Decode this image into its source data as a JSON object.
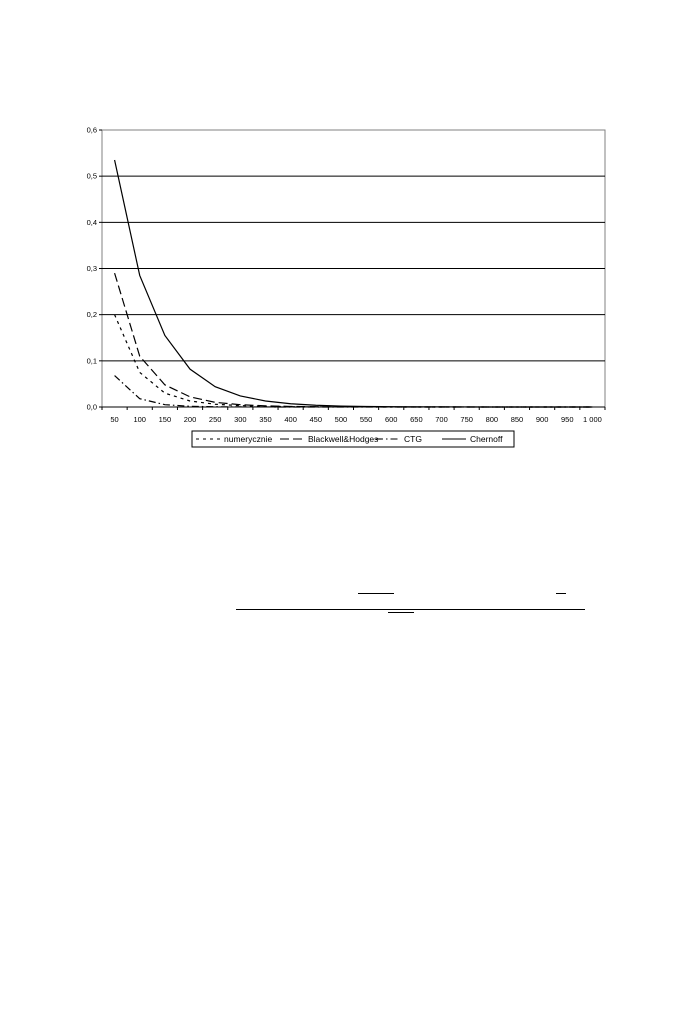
{
  "chart_data": {
    "type": "line",
    "x": [
      50,
      100,
      150,
      200,
      250,
      300,
      350,
      400,
      450,
      500,
      550,
      600,
      650,
      700,
      750,
      800,
      850,
      900,
      950,
      1000
    ],
    "x_tick_labels": [
      "50",
      "100",
      "150",
      "200",
      "250",
      "300",
      "350",
      "400",
      "450",
      "500",
      "550",
      "600",
      "650",
      "700",
      "750",
      "800",
      "850",
      "900",
      "950",
      "1 000"
    ],
    "y_tick_labels": [
      "0,0",
      "0,1",
      "0,2",
      "0,3",
      "0,4",
      "0,5",
      "0,6"
    ],
    "ylim": [
      0,
      0.6
    ],
    "grid": true,
    "legend_position": "bottom",
    "series": [
      {
        "name": "numerycznie",
        "style": "dashed-short",
        "color": "#000000",
        "values": [
          0.2,
          0.075,
          0.03,
          0.013,
          0.006,
          0.003,
          0.0015,
          0.0007,
          0.0003,
          0.0002,
          0.0001,
          0,
          0,
          0,
          0,
          0,
          0,
          0,
          0,
          0
        ]
      },
      {
        "name": "Blackwell&Hodges",
        "style": "dashed-long",
        "color": "#000000",
        "values": [
          0.29,
          0.11,
          0.048,
          0.022,
          0.01,
          0.005,
          0.0025,
          0.0012,
          0.0006,
          0.0003,
          0.0002,
          0.0001,
          0,
          0,
          0,
          0,
          0,
          0,
          0,
          0
        ]
      },
      {
        "name": "CTG",
        "style": "dash-dot",
        "color": "#000000",
        "values": [
          0.068,
          0.018,
          0.005,
          0.0015,
          0.0005,
          0.0002,
          0.0001,
          0,
          0,
          0,
          0,
          0,
          0,
          0,
          0,
          0,
          0,
          0,
          0,
          0
        ]
      },
      {
        "name": "Chernoff",
        "style": "solid",
        "color": "#000000",
        "values": [
          0.535,
          0.285,
          0.155,
          0.082,
          0.044,
          0.024,
          0.013,
          0.007,
          0.0038,
          0.002,
          0.0011,
          0.0006,
          0.0003,
          0.0002,
          0.0001,
          0,
          0,
          0,
          0,
          0
        ]
      }
    ]
  }
}
